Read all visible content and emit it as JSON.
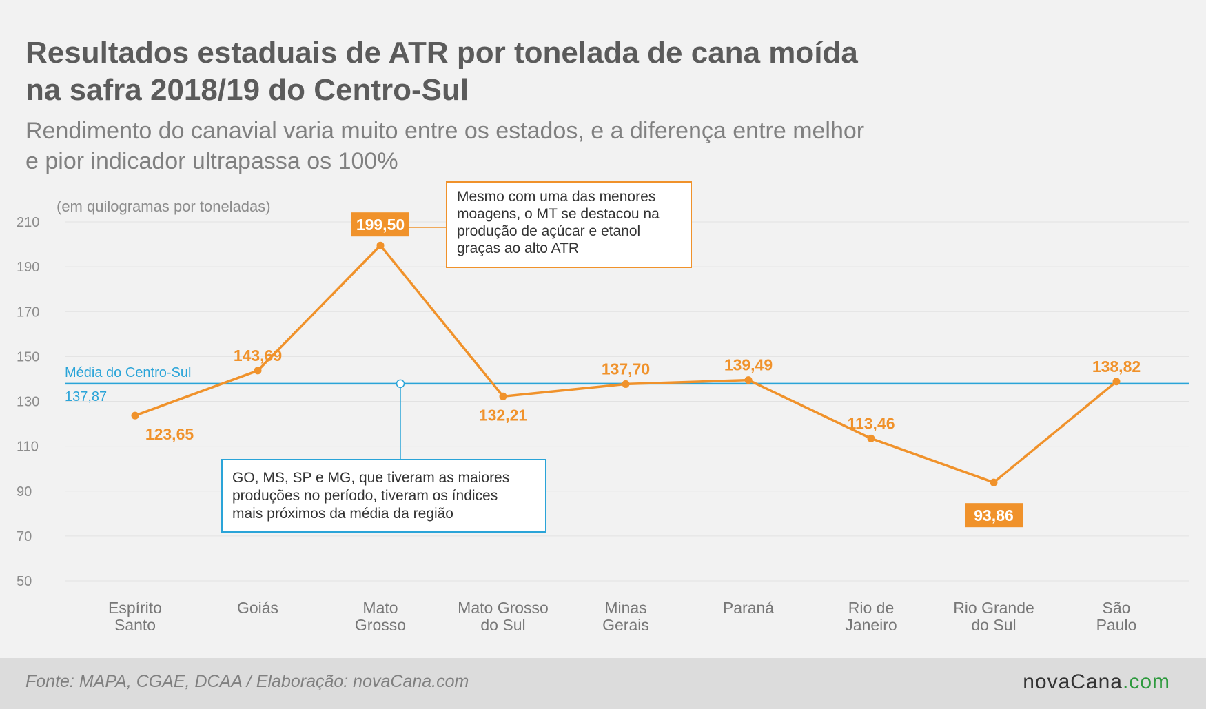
{
  "title_line1": "Resultados estaduais de ATR por tonelada de cana moída",
  "title_line2": "na safra 2018/19 do Centro-Sul",
  "subtitle_line1": "Rendimento do canavial varia muito entre os estados, e a diferença entre melhor",
  "subtitle_line2": "e pior indicador ultrapassa os 100%",
  "source": "Fonte: MAPA, CGAE, DCAA / Elaboração: novaCana.com",
  "logo": {
    "part1": "novaCana",
    "part2": ".com",
    "accent": "#2e9a3e"
  },
  "colors": {
    "series": "#f0922b",
    "average": "#2aa4d8",
    "grid": "#e2e2e2",
    "text_gray": "#8c8c8c"
  },
  "chart_data": {
    "type": "line",
    "unit_label": "(em quilogramas por toneladas)",
    "ylim": [
      50,
      210
    ],
    "yticks": [
      50,
      70,
      90,
      110,
      130,
      150,
      170,
      190,
      210
    ],
    "grid": true,
    "categories": [
      [
        "Espírito",
        "Santo"
      ],
      [
        "Goiás"
      ],
      [
        "Mato",
        "Grosso"
      ],
      [
        "Mato Grosso",
        "do Sul"
      ],
      [
        "Minas",
        "Gerais"
      ],
      [
        "Paraná"
      ],
      [
        "Rio de",
        "Janeiro"
      ],
      [
        "Rio Grande",
        "do Sul"
      ],
      [
        "São",
        "Paulo"
      ]
    ],
    "values": [
      123.65,
      143.69,
      199.5,
      132.21,
      137.7,
      139.49,
      113.46,
      93.86,
      138.82
    ],
    "value_labels": [
      "123,65",
      "143,69",
      "199,50",
      "132,21",
      "137,70",
      "139,49",
      "113,46",
      "93,86",
      "138,82"
    ],
    "label_position": [
      "below",
      "above",
      "above",
      "below",
      "above",
      "above",
      "above",
      "below",
      "above"
    ],
    "highlighted": [
      false,
      false,
      true,
      false,
      false,
      false,
      false,
      true,
      false
    ],
    "average": {
      "name": "Média do Centro-Sul",
      "value": 137.87,
      "label": "137,87"
    },
    "annotations": [
      {
        "lines": [
          "Mesmo com uma das menores",
          "moagens, o MT se destacou na",
          "produção de açúcar e etanol",
          "graças ao alto ATR"
        ],
        "color": "#f0922b"
      },
      {
        "lines": [
          "GO, MS, SP e MG, que tiveram as maiores",
          "produções no período, tiveram os índices",
          "mais próximos da média da região"
        ],
        "color": "#2aa4d8"
      }
    ]
  }
}
